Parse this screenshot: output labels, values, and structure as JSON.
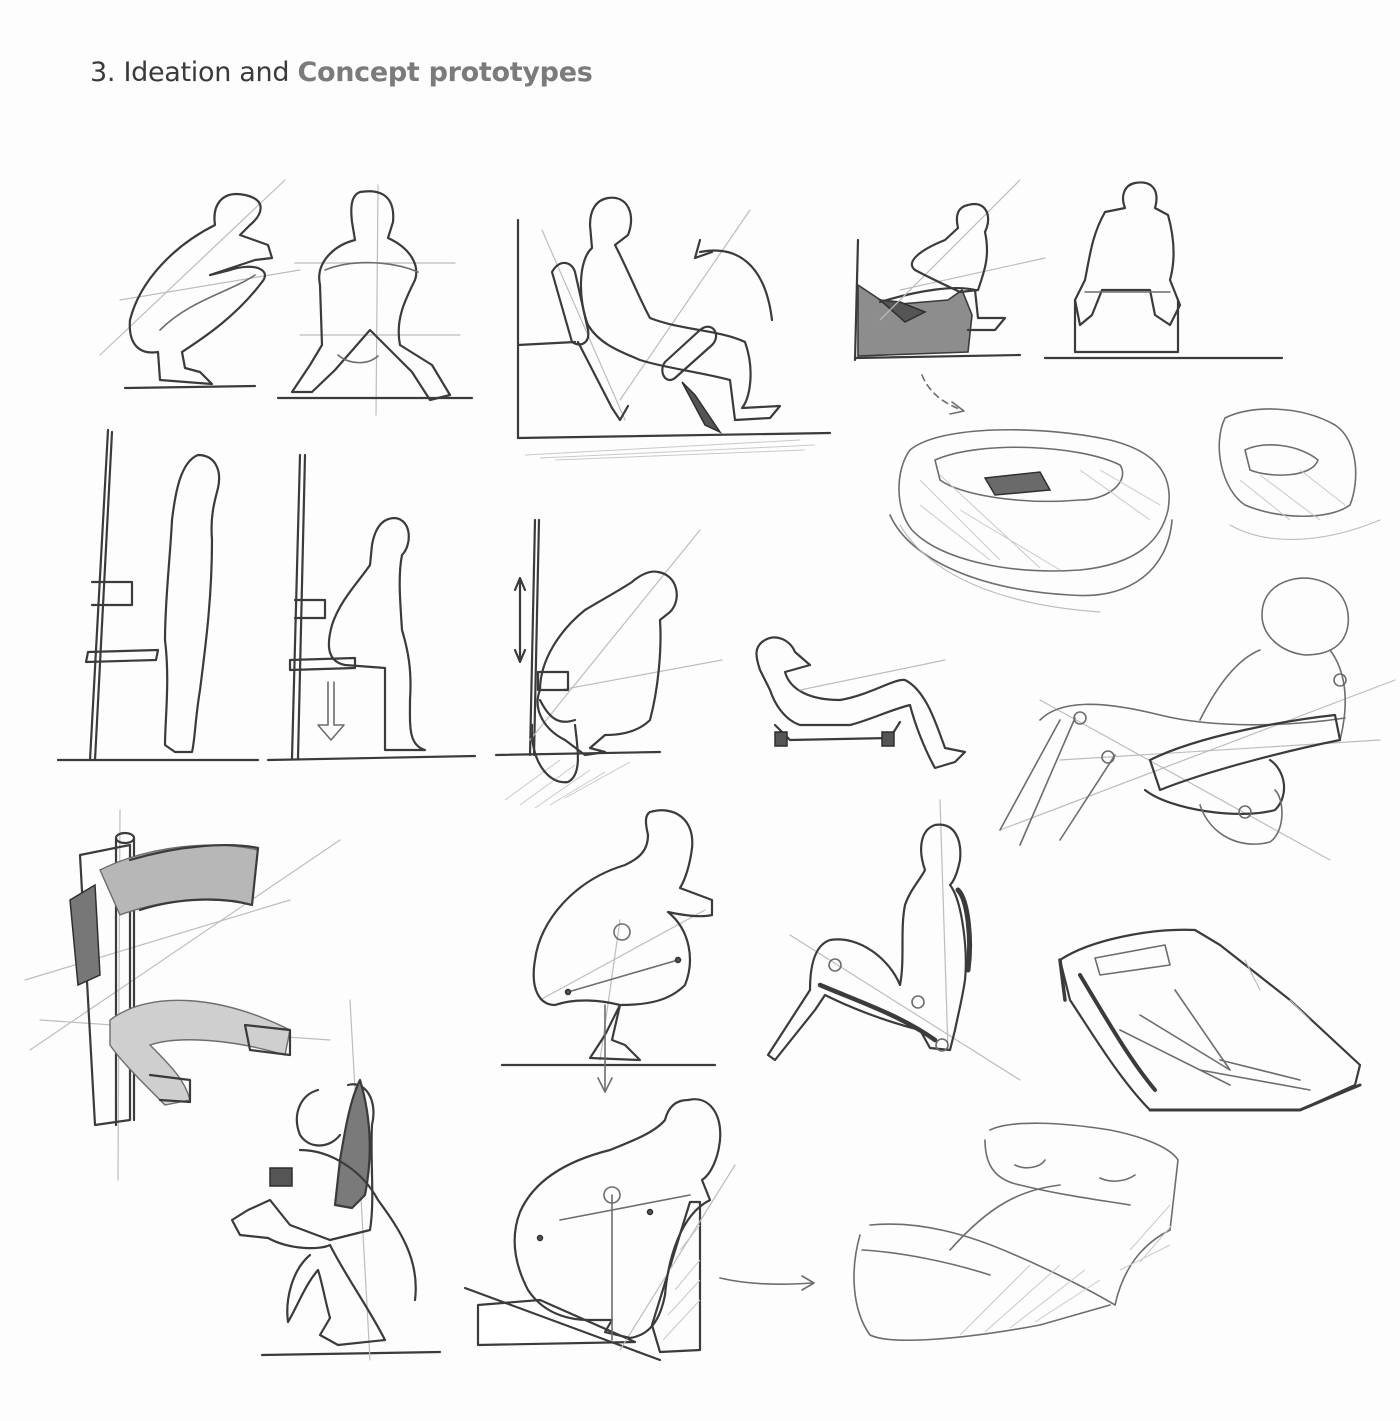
{
  "heading": {
    "prefix": "3. Ideation and ",
    "emphasis": "Concept prototypes"
  },
  "colors": {
    "background": "#fdfdfd",
    "heading_text": "#3a3a3a",
    "heading_emphasis": "#7b7b7b",
    "pencil_dark": "#3b3b3b",
    "pencil_light": "#bdbdbd"
  }
}
